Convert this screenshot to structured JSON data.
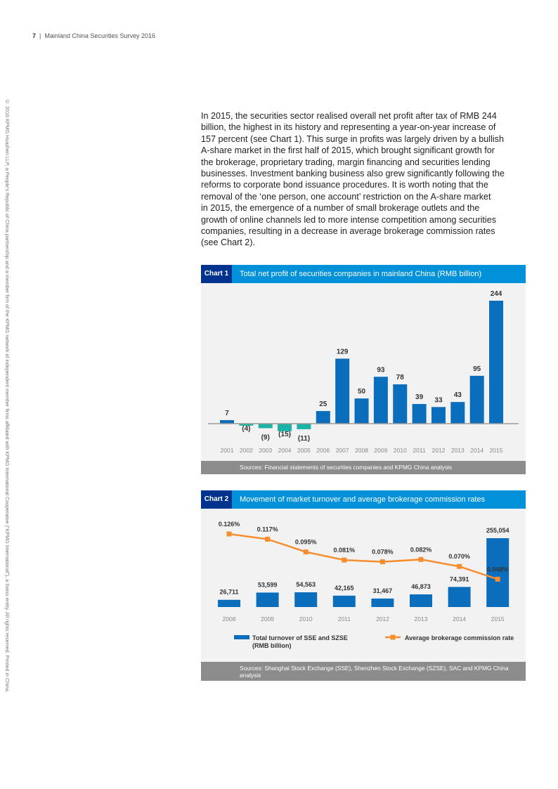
{
  "header": {
    "page": "7",
    "separator": "|",
    "title": "Mainland China Securities Survey 2016"
  },
  "sidebar": "© 2016 KPMG Huazhen LLP, a People's Republic of China partnership and a member firm of the KPMG network of independent member firms affiliated with KPMG International Cooperative (“KPMG International”), a Swiss entity. All rights reserved. Printed in China.",
  "body": {
    "lines": [
      "In 2015, the securities sector realised overall net profit after tax of RMB 244",
      "billion, the highest in its history and representing a year-on-year increase of",
      "157 percent (see Chart 1). This surge in profits was largely driven by a bullish",
      "A-share market in the first half of 2015, which brought significant growth for",
      "the brokerage, proprietary trading, margin financing and securities lending",
      "businesses. Investment banking business also grew significantly following the",
      "reforms to corporate bond issuance procedures. It is worth noting that the",
      "removal of the ‘one person, one account’ restriction on the A-share market",
      "in 2015, the emergence of a number of small brokerage outlets and the",
      "growth of online channels led to more intense competition among securities",
      "companies, resulting in a decrease in average brokerage commission rates",
      "(see Chart 2)."
    ]
  },
  "chart_data": [
    {
      "type": "bar",
      "label": "Chart 1",
      "title": "Total net profit of securities companies in mainland China (RMB billion)",
      "categories": [
        "2001",
        "2002",
        "2003",
        "2004",
        "2005",
        "2006",
        "2007",
        "2008",
        "2009",
        "2010",
        "2011",
        "2012",
        "2013",
        "2014",
        "2015"
      ],
      "values": [
        7,
        -4,
        -9,
        -15,
        -11,
        25,
        129,
        50,
        93,
        78,
        39,
        33,
        43,
        95,
        244
      ],
      "value_labels": [
        "7",
        "(4)",
        "(9)",
        "(15)",
        "(11)",
        "25",
        "129",
        "50",
        "93",
        "78",
        "39",
        "33",
        "43",
        "95",
        "244"
      ],
      "color": "#0a6ebd",
      "negative_color": "#1ab3a6",
      "source": "Sources: Financial statements of securities companies and KPMG China analysis"
    },
    {
      "type": "combo",
      "label": "Chart 2",
      "title": "Movement of market turnover and average brokerage commission rates",
      "categories": [
        "2008",
        "2009",
        "2010",
        "2011",
        "2012",
        "2013",
        "2014",
        "2015"
      ],
      "series": [
        {
          "name": "Total turnover of SSE and SZSE (RMB billion)",
          "type": "bar",
          "color": "#0a6ebd",
          "values": [
            26711,
            53599,
            54563,
            42165,
            31467,
            46873,
            74391,
            255054
          ],
          "value_labels": [
            "26,711",
            "53,599",
            "54,563",
            "42,165",
            "31,467",
            "46,873",
            "74,391",
            "255,054"
          ]
        },
        {
          "name": "Average brokerage commission rate",
          "type": "line",
          "axis": "y2",
          "color": "#f68d2e",
          "values": [
            0.126,
            0.117,
            0.095,
            0.081,
            0.078,
            0.082,
            0.07,
            0.048
          ],
          "value_labels": [
            "0.126%",
            "0.117%",
            "0.095%",
            "0.081%",
            "0.078%",
            "0.082%",
            "0.070%",
            "0.048%"
          ]
        }
      ],
      "source": "Sources: Shanghai Stock Exchange (SSE), Shenzhen Stock Exchange (SZSE), SAC and KPMG China analysis"
    }
  ]
}
